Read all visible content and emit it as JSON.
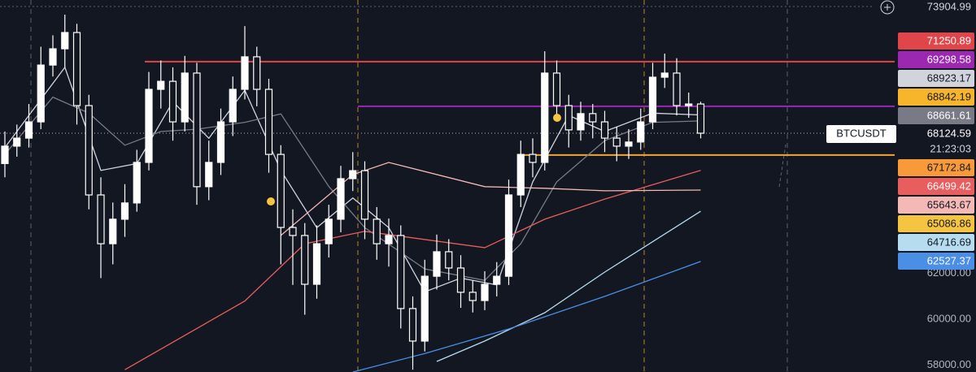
{
  "chart_data": {
    "type": "candlestick",
    "symbol": "BTCUSDT",
    "last_price": 68124.59,
    "countdown": "21:23:03",
    "top_price": 73904.99,
    "ylim": [
      57700,
      73940
    ],
    "yticks": [
      {
        "value": 58000,
        "label": "58000.00"
      },
      {
        "value": 60000,
        "label": "60000.00"
      },
      {
        "value": 62000,
        "label": "62000.00"
      }
    ],
    "candles": [
      [
        66800,
        68200,
        66200,
        67560
      ],
      [
        67560,
        68500,
        67100,
        67910
      ],
      [
        67910,
        69400,
        67500,
        68620
      ],
      [
        68620,
        71900,
        68300,
        71100
      ],
      [
        71100,
        72400,
        70600,
        71810
      ],
      [
        71810,
        73300,
        71000,
        72520
      ],
      [
        72520,
        72900,
        68500,
        69330
      ],
      [
        69330,
        69800,
        64800,
        65430
      ],
      [
        65430,
        66200,
        61800,
        63300
      ],
      [
        63300,
        65100,
        62400,
        64370
      ],
      [
        64370,
        65900,
        63600,
        65080
      ],
      [
        65080,
        67400,
        64700,
        66850
      ],
      [
        66850,
        70800,
        66500,
        70040
      ],
      [
        70040,
        71300,
        69200,
        70390
      ],
      [
        70390,
        71000,
        67800,
        68620
      ],
      [
        68620,
        71500,
        68200,
        70750
      ],
      [
        70750,
        71200,
        65000,
        65790
      ],
      [
        65790,
        67800,
        65200,
        66850
      ],
      [
        66850,
        69200,
        66300,
        68620
      ],
      [
        68620,
        70600,
        68000,
        70040
      ],
      [
        70040,
        72800,
        69600,
        71460
      ],
      [
        71460,
        71900,
        69300,
        70040
      ],
      [
        70040,
        70500,
        66400,
        67200
      ],
      [
        67200,
        67600,
        62400,
        64010
      ],
      [
        64010,
        64800,
        61500,
        63660
      ],
      [
        63660,
        64200,
        60200,
        61530
      ],
      [
        61530,
        64100,
        60900,
        63300
      ],
      [
        63300,
        65000,
        62700,
        64370
      ],
      [
        64370,
        66700,
        63800,
        66140
      ],
      [
        66140,
        67300,
        65600,
        66490
      ],
      [
        66490,
        66900,
        63500,
        64370
      ],
      [
        64370,
        64900,
        62600,
        63300
      ],
      [
        63300,
        64400,
        62300,
        63660
      ],
      [
        63660,
        64100,
        59600,
        60470
      ],
      [
        60470,
        61000,
        57800,
        59050
      ],
      [
        59050,
        62600,
        58600,
        61880
      ],
      [
        61880,
        63700,
        61300,
        62950
      ],
      [
        62950,
        63500,
        61700,
        62240
      ],
      [
        62240,
        62800,
        60500,
        61180
      ],
      [
        61180,
        61700,
        60300,
        60820
      ],
      [
        60820,
        62100,
        60400,
        61530
      ],
      [
        61530,
        62500,
        61000,
        61880
      ],
      [
        61880,
        66100,
        61500,
        65430
      ],
      [
        65430,
        67800,
        64900,
        67200
      ],
      [
        67200,
        67900,
        66200,
        66850
      ],
      [
        66850,
        71700,
        66500,
        70750
      ],
      [
        70750,
        71300,
        68700,
        69330
      ],
      [
        69330,
        69800,
        67500,
        68270
      ],
      [
        68270,
        69500,
        67800,
        68980
      ],
      [
        68980,
        69400,
        67900,
        68620
      ],
      [
        68620,
        69100,
        67300,
        67910
      ],
      [
        67910,
        68400,
        66900,
        67560
      ],
      [
        67560,
        68300,
        67000,
        67740
      ],
      [
        67740,
        69200,
        67400,
        68620
      ],
      [
        68620,
        71200,
        68300,
        70570
      ],
      [
        70570,
        71600,
        70100,
        70750
      ],
      [
        70750,
        71400,
        68900,
        69330
      ],
      [
        69330,
        69900,
        68800,
        69400
      ],
      [
        69400,
        69500,
        67900,
        68124.59
      ]
    ],
    "series": [
      {
        "color": "#d1d4dc",
        "x": [
          0,
          5,
          8,
          11,
          14,
          17,
          20,
          23,
          26,
          29,
          32,
          35,
          38,
          41,
          44,
          47,
          50,
          54,
          58
        ],
        "values": [
          67500,
          71000,
          66500,
          66800,
          69500,
          67900,
          70000,
          66500,
          64000,
          65300,
          64000,
          61200,
          61800,
          61500,
          66000,
          68900,
          68200,
          69000,
          68923.17
        ]
      },
      {
        "color": "#787b86",
        "x": [
          0,
          4,
          7,
          10,
          13,
          16,
          20,
          23,
          27,
          30,
          35,
          40,
          43,
          46,
          50,
          54,
          58
        ],
        "values": [
          67200,
          69700,
          69000,
          67600,
          68200,
          68300,
          68600,
          68970,
          65800,
          64000,
          62200,
          61700,
          63300,
          66000,
          67800,
          68600,
          68661.61
        ]
      },
      {
        "color": "#e85d5d",
        "x": [
          10,
          20,
          25,
          30,
          40,
          45,
          50,
          58
        ],
        "values": [
          57800,
          60800,
          63300,
          63840,
          63130,
          64370,
          65250,
          66499.42
        ]
      },
      {
        "color": "#f4b9b4",
        "x": [
          23,
          29,
          32,
          40,
          45,
          50,
          58
        ],
        "values": [
          63660,
          66320,
          66850,
          65790,
          65720,
          65610,
          65643.67
        ]
      },
      {
        "color": "#b5dcef",
        "x": [
          36,
          40,
          45,
          50,
          58
        ],
        "values": [
          58160,
          59050,
          60290,
          62060,
          64716.69
        ]
      },
      {
        "color": "#4a8ee6",
        "x": [
          29,
          35,
          42,
          50,
          58
        ],
        "values": [
          57700,
          58510,
          59580,
          61000,
          62527.37
        ]
      }
    ],
    "levels": [
      {
        "value": 71250.89,
        "color": "#e0454a"
      },
      {
        "value": 69298.58,
        "color": "#9c27b0"
      },
      {
        "value": 67172.84,
        "color": "#f7a531"
      }
    ],
    "price_tags_above": [
      {
        "value": 71250.89,
        "color": "#e0454a"
      },
      {
        "value": 69298.58,
        "color": "#9c27b0"
      },
      {
        "value": 68923.17,
        "color": "#d1d4dc"
      },
      {
        "value": 68842.19,
        "color": "#f7b52c"
      },
      {
        "value": 68661.61,
        "color": "#787b86"
      }
    ],
    "price_tags_below": [
      {
        "value": 67172.84,
        "color": "#f89a3a"
      },
      {
        "value": 66499.42,
        "color": "#e85d5d"
      },
      {
        "value": 65643.67,
        "color": "#f4b9b4"
      },
      {
        "value": 65086.86,
        "color": "#f5c542"
      },
      {
        "value": 64716.69,
        "color": "#b5dcef"
      },
      {
        "value": 62527.37,
        "color": "#4a8ee6"
      }
    ]
  }
}
